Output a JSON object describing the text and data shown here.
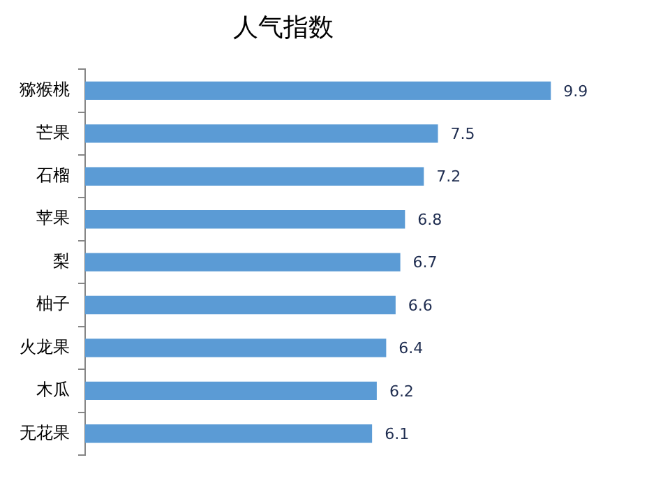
{
  "chart_data": {
    "type": "bar",
    "orientation": "horizontal",
    "title": "人气指数",
    "categories": [
      "猕猴桃",
      "芒果",
      "石榴",
      "苹果",
      "梨",
      "柚子",
      "火龙果",
      "木瓜",
      "无花果"
    ],
    "values": [
      9.9,
      7.5,
      7.2,
      6.8,
      6.7,
      6.6,
      6.4,
      6.2,
      6.1
    ],
    "color": "#5b9bd5",
    "xlim": [
      0,
      10
    ],
    "data_labels": true,
    "grid": false,
    "legend": false
  }
}
